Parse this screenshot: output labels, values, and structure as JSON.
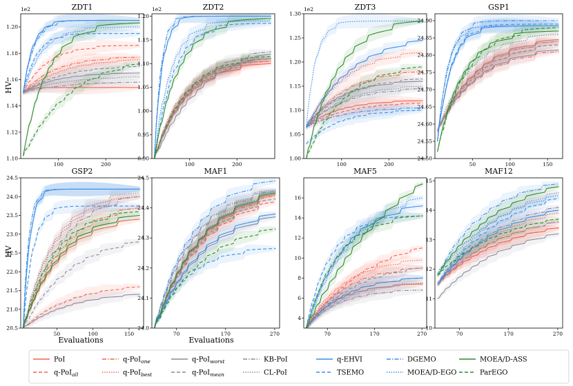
{
  "figure": {
    "xlabel": "Evaluations",
    "ylabel": "HV"
  },
  "legend": {
    "entries": [
      {
        "label": "PoI",
        "sub": ""
      },
      {
        "label": "q-PoI",
        "sub": "all"
      },
      {
        "label": "q-PoI",
        "sub": "one"
      },
      {
        "label": "q-PoI",
        "sub": "best"
      },
      {
        "label": "q-PoI",
        "sub": "worst"
      },
      {
        "label": "q-PoI",
        "sub": "mean"
      },
      {
        "label": "KB-PoI",
        "sub": ""
      },
      {
        "label": "CL-PoI",
        "sub": ""
      },
      {
        "label": "q-EHVI",
        "sub": ""
      },
      {
        "label": "TSEMO",
        "sub": ""
      },
      {
        "label": "DGEMO",
        "sub": ""
      },
      {
        "label": "MOEA/D-EGO",
        "sub": ""
      },
      {
        "label": "MOEA/D-ASS",
        "sub": ""
      },
      {
        "label": "ParEGO",
        "sub": ""
      }
    ]
  },
  "series_styles": [
    {
      "name": "PoI",
      "color": "#f4614f",
      "dash": "solid"
    },
    {
      "name": "q-PoI_all",
      "color": "#f4614f",
      "dash": "dashed"
    },
    {
      "name": "q-PoI_one",
      "color": "#f4614f",
      "dash": "dashdot"
    },
    {
      "name": "q-PoI_best",
      "color": "#f4614f",
      "dash": "dotted"
    },
    {
      "name": "q-PoI_worst",
      "color": "#8a8a9a",
      "dash": "solid"
    },
    {
      "name": "q-PoI_mean",
      "color": "#8a8a9a",
      "dash": "dashed"
    },
    {
      "name": "KB-PoI",
      "color": "#8a8a9a",
      "dash": "dashdot"
    },
    {
      "name": "CL-PoI",
      "color": "#8a8a9a",
      "dash": "dotted"
    },
    {
      "name": "q-EHVI",
      "color": "#3a8ee6",
      "dash": "solid"
    },
    {
      "name": "TSEMO",
      "color": "#3a8ee6",
      "dash": "dashed"
    },
    {
      "name": "DGEMO",
      "color": "#3a8ee6",
      "dash": "dashdot"
    },
    {
      "name": "MOEA/D-EGO",
      "color": "#3a8ee6",
      "dash": "dotted"
    },
    {
      "name": "MOEA/D-ASS",
      "color": "#2e8b2e",
      "dash": "solid"
    },
    {
      "name": "ParEGO",
      "color": "#2e8b2e",
      "dash": "dashed"
    }
  ],
  "chart_data": [
    {
      "type": "line",
      "title": "ZDT1",
      "offset_label": "1e2",
      "xlim": [
        20,
        280
      ],
      "ylim": [
        1.1,
        1.21
      ],
      "xticks": [
        100,
        200
      ],
      "yticks": [
        1.1,
        1.12,
        1.14,
        1.16,
        1.18,
        1.2
      ],
      "ydec": 2,
      "start": 1.15,
      "finals": [
        1.154,
        1.186,
        1.177,
        1.175,
        1.165,
        1.17,
        1.158,
        1.162,
        1.205,
        1.195,
        1.205,
        1.2,
        1.203,
        1.172
      ],
      "rates": [
        0.3,
        0.08,
        0.06,
        0.05,
        0.06,
        0.05,
        0.05,
        0.05,
        0.2,
        0.15,
        0.18,
        0.1,
        0.08,
        0.04
      ],
      "starts": [
        1.15,
        1.15,
        1.15,
        1.15,
        1.15,
        1.15,
        1.15,
        1.15,
        1.15,
        1.15,
        1.15,
        1.15,
        1.102,
        1.102
      ]
    },
    {
      "type": "line",
      "title": "ZDT2",
      "offset_label": "1e2",
      "xlim": [
        20,
        280
      ],
      "ylim": [
        0.9,
        1.205
      ],
      "xticks": [
        100,
        200
      ],
      "yticks": [
        0.9,
        0.95,
        1.0,
        1.05,
        1.1,
        1.15,
        1.2
      ],
      "ydec": 2,
      "start": 0.9,
      "finals": [
        1.1,
        1.105,
        1.11,
        1.105,
        1.12,
        1.11,
        1.125,
        1.112,
        1.2,
        1.185,
        1.2,
        1.19,
        1.195,
        1.115
      ],
      "rates": [
        0.06,
        0.06,
        0.06,
        0.07,
        0.04,
        0.06,
        0.05,
        0.06,
        0.25,
        0.1,
        0.3,
        0.12,
        0.08,
        0.06
      ],
      "starts": [
        0.9,
        0.9,
        0.9,
        0.9,
        0.9,
        0.9,
        0.9,
        0.9,
        0.9,
        0.9,
        0.9,
        0.9,
        0.9,
        0.9
      ]
    },
    {
      "type": "line",
      "title": "ZDT3",
      "offset_label": "1e2",
      "xlim": [
        20,
        280
      ],
      "ylim": [
        1.0,
        1.3
      ],
      "xticks": [
        100,
        200
      ],
      "yticks": [
        1.0,
        1.05,
        1.1,
        1.15,
        1.2,
        1.25,
        1.3
      ],
      "ydec": 2,
      "start": 1.0,
      "finals": [
        1.12,
        1.115,
        1.18,
        1.22,
        1.16,
        1.165,
        1.145,
        1.15,
        1.245,
        1.1,
        1.105,
        1.285,
        1.285,
        1.19
      ],
      "rates": [
        0.06,
        0.05,
        0.05,
        0.05,
        0.06,
        0.05,
        0.05,
        0.05,
        0.04,
        0.06,
        0.05,
        0.2,
        0.06,
        0.05
      ],
      "starts": [
        1.065,
        1.065,
        1.065,
        1.065,
        1.065,
        1.065,
        1.065,
        1.065,
        1.065,
        1.03,
        1.065,
        1.065,
        1.0,
        1.0
      ]
    },
    {
      "type": "line",
      "title": "GSP1",
      "offset_label": "",
      "xlim": [
        0,
        170
      ],
      "ylim": [
        24.5,
        24.92
      ],
      "xticks": [
        50,
        100,
        150
      ],
      "yticks": [
        24.5,
        24.55,
        24.6,
        24.65,
        24.7,
        24.75,
        24.8,
        24.85,
        24.9
      ],
      "ydec": 2,
      "start": 24.5,
      "finals": [
        24.845,
        24.83,
        24.81,
        24.84,
        24.815,
        24.83,
        24.84,
        24.86,
        24.885,
        24.89,
        24.9,
        24.885,
        24.87,
        24.88
      ],
      "rates": [
        0.05,
        0.05,
        0.05,
        0.05,
        0.05,
        0.05,
        0.05,
        0.06,
        0.15,
        0.15,
        0.18,
        0.2,
        0.08,
        0.07
      ],
      "starts": [
        24.58,
        24.58,
        24.58,
        24.58,
        24.58,
        24.58,
        24.58,
        24.58,
        24.55,
        24.55,
        24.55,
        24.55,
        24.52,
        24.52
      ]
    },
    {
      "type": "line",
      "title": "GSP2",
      "offset_label": "",
      "xlim": [
        0,
        170
      ],
      "ylim": [
        20.5,
        24.5
      ],
      "xticks": [
        50,
        100,
        150
      ],
      "yticks": [
        20.5,
        21.0,
        21.5,
        22.0,
        22.5,
        23.0,
        23.5,
        24.0,
        24.5
      ],
      "ydec": 1,
      "start": 20.5,
      "finals": [
        23.4,
        21.6,
        23.7,
        24.0,
        21.4,
        22.8,
        24.0,
        24.1,
        24.2,
        23.75,
        24.2,
        24.2,
        23.5,
        23.6
      ],
      "rates": [
        0.05,
        0.04,
        0.05,
        0.06,
        0.04,
        0.04,
        0.05,
        0.06,
        0.3,
        0.2,
        0.35,
        0.3,
        0.05,
        0.06
      ],
      "starts": [
        20.5,
        20.5,
        20.5,
        20.5,
        20.5,
        20.5,
        20.5,
        20.5,
        20.5,
        20.5,
        20.5,
        20.5,
        20.5,
        20.5
      ]
    },
    {
      "type": "line",
      "title": "MAF1",
      "offset_label": "",
      "xlim": [
        20,
        280
      ],
      "ylim": [
        24.0,
        24.5
      ],
      "xticks": [
        70,
        170,
        270
      ],
      "yticks": [
        24.0,
        24.1,
        24.2,
        24.3,
        24.4,
        24.5
      ],
      "ydec": 1,
      "start": 24.0,
      "finals": [
        24.445,
        24.42,
        24.44,
        24.45,
        24.37,
        24.43,
        24.455,
        24.46,
        24.38,
        24.265,
        24.49,
        24.455,
        24.45,
        24.33
      ],
      "rates": [
        0.04,
        0.04,
        0.04,
        0.04,
        0.04,
        0.04,
        0.05,
        0.05,
        0.04,
        0.06,
        0.05,
        0.04,
        0.04,
        0.04
      ],
      "starts": [
        24.0,
        24.0,
        24.0,
        24.0,
        24.0,
        24.0,
        24.0,
        24.0,
        24.0,
        24.0,
        24.0,
        24.0,
        24.0,
        24.0
      ]
    },
    {
      "type": "line",
      "title": "MAF5",
      "offset_label": "",
      "xlim": [
        20,
        280
      ],
      "ylim": [
        3,
        18
      ],
      "xticks": [
        70,
        170,
        270
      ],
      "yticks": [
        4,
        6,
        8,
        10,
        12,
        14,
        16
      ],
      "ydec": 0,
      "start": 3,
      "finals": [
        7.4,
        11.0,
        9.0,
        9.8,
        8.0,
        9.0,
        6.8,
        7.5,
        15.2,
        14.2,
        8.0,
        16.0,
        17.4,
        14.2
      ],
      "rates": [
        0.06,
        0.03,
        0.05,
        0.05,
        0.05,
        0.04,
        0.06,
        0.05,
        0.05,
        0.08,
        0.05,
        0.04,
        0.02,
        0.06
      ],
      "starts": [
        3,
        3,
        3,
        3,
        3,
        3,
        3,
        3,
        3,
        3,
        3,
        3,
        3,
        3
      ]
    },
    {
      "type": "line",
      "title": "MAF12",
      "offset_label": "",
      "xlim": [
        20,
        280
      ],
      "ylim": [
        10,
        15.1
      ],
      "xticks": [
        70,
        170,
        270
      ],
      "yticks": [
        10,
        11,
        12,
        13,
        14,
        15
      ],
      "ydec": 0,
      "start": 10,
      "finals": [
        13.4,
        13.4,
        13.6,
        13.9,
        13.2,
        13.6,
        14.1,
        14.6,
        14.0,
        14.4,
        14.9,
        14.5,
        14.8,
        13.7
      ],
      "rates": [
        0.03,
        0.03,
        0.03,
        0.03,
        0.03,
        0.03,
        0.03,
        0.03,
        0.03,
        0.03,
        0.04,
        0.03,
        0.03,
        0.03
      ],
      "starts": [
        11.5,
        11.5,
        11.5,
        11.5,
        11.0,
        11.5,
        11.5,
        11.5,
        11.5,
        11.5,
        11.8,
        11.8,
        11.8,
        11.8
      ]
    }
  ]
}
